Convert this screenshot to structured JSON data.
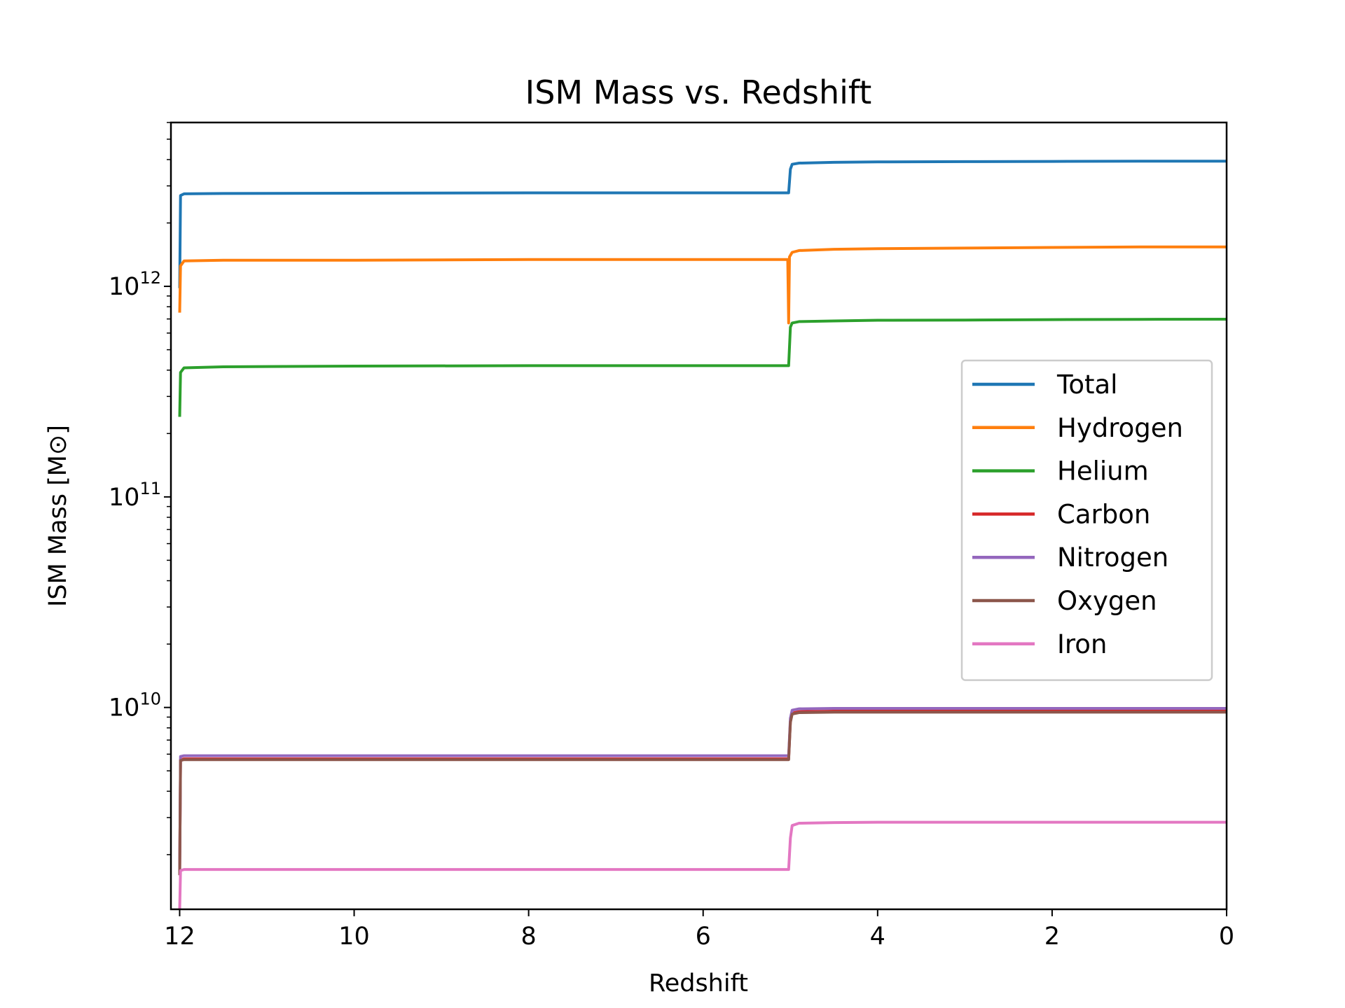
{
  "chart_data": {
    "type": "line",
    "title": "ISM Mass vs. Redshift",
    "xlabel": "Redshift",
    "ylabel": "ISM Mass [M⊙]",
    "xlim": [
      12.1,
      0
    ],
    "ylim": [
      1100000000.0,
      6000000000000.0
    ],
    "yscale": "log",
    "x_ticks": [
      12,
      10,
      8,
      6,
      4,
      2,
      0
    ],
    "y_ticks": [
      {
        "base": "10",
        "exp": "10",
        "value": 10000000000.0
      },
      {
        "base": "10",
        "exp": "11",
        "value": 100000000000.0
      },
      {
        "base": "10",
        "exp": "12",
        "value": 1000000000000.0
      }
    ],
    "grid": false,
    "legend_position": "center-right",
    "series": [
      {
        "name": "Total",
        "color": "#1f77b4",
        "x": [
          12.0,
          11.99,
          11.95,
          11.5,
          10,
          8,
          6,
          5.02,
          5.0,
          4.98,
          4.9,
          4.5,
          4,
          3,
          2,
          1,
          0
        ],
        "y": [
          980000000000.0,
          2700000000000.0,
          2750000000000.0,
          2760000000000.0,
          2770000000000.0,
          2780000000000.0,
          2780000000000.0,
          2780000000000.0,
          3600000000000.0,
          3800000000000.0,
          3850000000000.0,
          3880000000000.0,
          3900000000000.0,
          3910000000000.0,
          3920000000000.0,
          3930000000000.0,
          3930000000000.0
        ]
      },
      {
        "name": "Hydrogen",
        "color": "#ff7f0e",
        "x": [
          12.0,
          11.99,
          11.95,
          11.5,
          10,
          8,
          6,
          5.03,
          5.02,
          5.01,
          4.98,
          4.9,
          4.5,
          4,
          3,
          2,
          1,
          0
        ],
        "y": [
          750000000000.0,
          1250000000000.0,
          1320000000000.0,
          1330000000000.0,
          1330000000000.0,
          1340000000000.0,
          1340000000000.0,
          1340000000000.0,
          670000000000.0,
          1380000000000.0,
          1450000000000.0,
          1480000000000.0,
          1500000000000.0,
          1510000000000.0,
          1520000000000.0,
          1530000000000.0,
          1540000000000.0,
          1540000000000.0
        ]
      },
      {
        "name": "Helium",
        "color": "#2ca02c",
        "x": [
          12.0,
          11.99,
          11.95,
          11.5,
          10,
          8,
          6,
          5.02,
          5.0,
          4.98,
          4.9,
          4.5,
          4,
          3,
          2,
          1,
          0
        ],
        "y": [
          240000000000.0,
          390000000000.0,
          410000000000.0,
          415000000000.0,
          418000000000.0,
          420000000000.0,
          420000000000.0,
          420000000000.0,
          640000000000.0,
          670000000000.0,
          680000000000.0,
          685000000000.0,
          690000000000.0,
          692000000000.0,
          695000000000.0,
          697000000000.0,
          698000000000.0
        ]
      },
      {
        "name": "Carbon",
        "color": "#d62728",
        "x": [
          12.0,
          11.99,
          11.95,
          11.5,
          10,
          8,
          6,
          5.02,
          5.0,
          4.98,
          4.9,
          4.5,
          4,
          3,
          2,
          1,
          0
        ],
        "y": [
          1600000000.0,
          5650000000.0,
          5700000000.0,
          5700000000.0,
          5700000000.0,
          5700000000.0,
          5700000000.0,
          5700000000.0,
          8600000000.0,
          9400000000.0,
          9550000000.0,
          9600000000.0,
          9600000000.0,
          9600000000.0,
          9600000000.0,
          9600000000.0,
          9600000000.0
        ]
      },
      {
        "name": "Nitrogen",
        "color": "#9467bd",
        "x": [
          12.0,
          11.99,
          11.95,
          11.5,
          10,
          8,
          6,
          5.02,
          5.0,
          4.98,
          4.9,
          4.5,
          4,
          3,
          2,
          1,
          0
        ],
        "y": [
          1600000000.0,
          5850000000.0,
          5900000000.0,
          5900000000.0,
          5900000000.0,
          5900000000.0,
          5900000000.0,
          5900000000.0,
          8900000000.0,
          9700000000.0,
          9850000000.0,
          9900000000.0,
          9900000000.0,
          9900000000.0,
          9900000000.0,
          9900000000.0,
          9900000000.0
        ]
      },
      {
        "name": "Oxygen",
        "color": "#8c564b",
        "x": [
          12.0,
          11.99,
          11.95,
          11.5,
          10,
          8,
          6,
          5.02,
          5.0,
          4.98,
          4.9,
          4.5,
          4,
          3,
          2,
          1,
          0
        ],
        "y": [
          1600000000.0,
          5600000000.0,
          5650000000.0,
          5650000000.0,
          5650000000.0,
          5650000000.0,
          5650000000.0,
          5650000000.0,
          8500000000.0,
          9300000000.0,
          9450000000.0,
          9500000000.0,
          9500000000.0,
          9500000000.0,
          9500000000.0,
          9500000000.0,
          9500000000.0
        ]
      },
      {
        "name": "Iron",
        "color": "#e377c2",
        "x": [
          12.0,
          11.99,
          11.95,
          11.5,
          10,
          8,
          6,
          5.02,
          5.0,
          4.98,
          4.9,
          4.5,
          4,
          3,
          2,
          1,
          0
        ],
        "y": [
          1100000000.0,
          1680000000.0,
          1700000000.0,
          1700000000.0,
          1700000000.0,
          1700000000.0,
          1700000000.0,
          1700000000.0,
          2400000000.0,
          2750000000.0,
          2820000000.0,
          2840000000.0,
          2850000000.0,
          2850000000.0,
          2850000000.0,
          2850000000.0,
          2850000000.0
        ]
      }
    ]
  }
}
